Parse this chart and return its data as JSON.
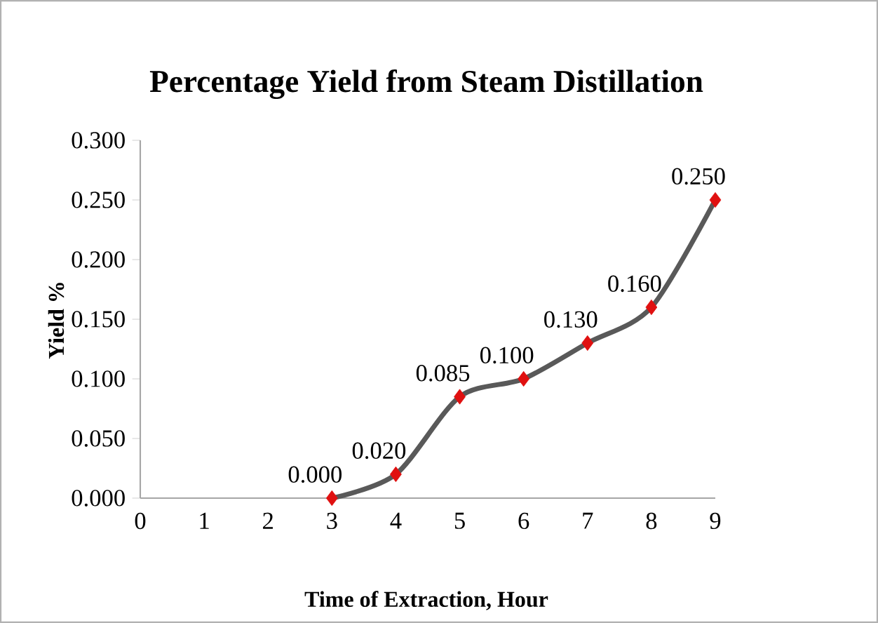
{
  "chart_data": {
    "type": "line",
    "title": "Percentage Yield from Steam Distillation",
    "xlabel": "Time of Extraction, Hour",
    "ylabel": "Yield %",
    "x": [
      3,
      4,
      5,
      6,
      7,
      8,
      9
    ],
    "series": [
      {
        "color": "#595959",
        "colors": [
          "#e01010",
          "#e01010",
          "#e01010",
          "#e01010",
          "#e01010",
          "#e01010",
          "#e01010"
        ],
        "values": [
          0.0,
          0.02,
          0.085,
          0.1,
          0.13,
          0.16,
          0.25
        ],
        "value_labels": [
          "0.000",
          "0.020",
          "0.085",
          "0.100",
          "0.130",
          "0.160",
          "0.250"
        ]
      }
    ],
    "xlim": [
      0,
      9
    ],
    "xticks": [
      0,
      1,
      2,
      3,
      4,
      5,
      6,
      7,
      8,
      9
    ],
    "ylim": [
      0,
      0.3
    ],
    "yticks": [
      {
        "value": 0,
        "label": "0.000"
      },
      {
        "value": 0.05,
        "label": "0.050"
      },
      {
        "value": 0.1,
        "label": "0.100"
      },
      {
        "value": 0.15,
        "label": "0.150"
      },
      {
        "value": 0.2,
        "label": "0.200"
      },
      {
        "value": 0.25,
        "label": "0.250"
      },
      {
        "value": 0.3,
        "label": "0.300"
      }
    ],
    "marker": "diamond",
    "line_style": "solid"
  }
}
